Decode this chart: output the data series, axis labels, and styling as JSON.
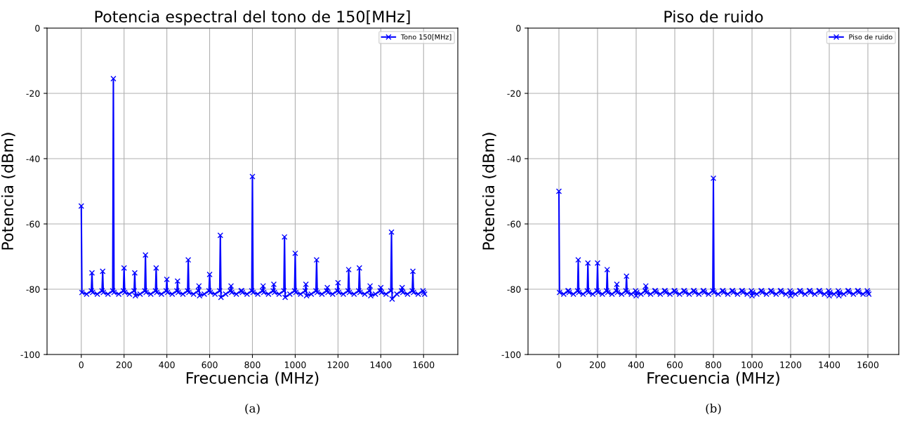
{
  "chart_data": [
    {
      "type": "line",
      "title": "Potencia espectral del tono de 150[MHz]",
      "xlabel": "Frecuencia (MHz)",
      "ylabel": "Potencia (dBm)",
      "x": [
        0,
        3,
        25,
        47,
        50,
        53,
        75,
        97,
        100,
        103,
        125,
        147,
        150,
        153,
        175,
        197,
        200,
        203,
        225,
        247,
        250,
        253,
        275,
        297,
        300,
        303,
        325,
        347,
        350,
        353,
        375,
        397,
        400,
        403,
        425,
        447,
        450,
        453,
        475,
        497,
        500,
        503,
        525,
        547,
        550,
        553,
        575,
        597,
        600,
        603,
        625,
        647,
        650,
        653,
        675,
        697,
        700,
        703,
        725,
        747,
        750,
        753,
        775,
        797,
        800,
        803,
        825,
        847,
        850,
        853,
        875,
        897,
        900,
        903,
        925,
        947,
        950,
        953,
        975,
        997,
        1000,
        1003,
        1025,
        1047,
        1050,
        1053,
        1075,
        1097,
        1100,
        1103,
        1125,
        1147,
        1150,
        1153,
        1175,
        1197,
        1200,
        1203,
        1225,
        1247,
        1250,
        1253,
        1275,
        1297,
        1300,
        1303,
        1325,
        1347,
        1350,
        1353,
        1375,
        1397,
        1400,
        1403,
        1425,
        1447,
        1450,
        1453,
        1475,
        1497,
        1500,
        1503,
        1525,
        1547,
        1550,
        1553,
        1575,
        1597,
        1600,
        1605
      ],
      "series": [
        {
          "name": "Tono 150[MHz]",
          "color": "#0000ff",
          "values": [
            -54.5,
            -81,
            -81.5,
            -80.5,
            -75,
            -81,
            -81.5,
            -80.5,
            -74.5,
            -81,
            -81.5,
            -80.5,
            -15.5,
            -81,
            -81.5,
            -80.5,
            -73.5,
            -81,
            -81.5,
            -80.5,
            -75,
            -82,
            -81.5,
            -80.5,
            -69.5,
            -81,
            -81.5,
            -80.5,
            -73.5,
            -81,
            -81.5,
            -80.5,
            -77,
            -81,
            -81.5,
            -80.5,
            -77.5,
            -81,
            -81.5,
            -80.5,
            -71,
            -81,
            -81.5,
            -80.5,
            -79,
            -82,
            -81.5,
            -80.5,
            -75.5,
            -81,
            -81.5,
            -80.5,
            -63.5,
            -82.5,
            -81.5,
            -80.5,
            -79,
            -81,
            -81.5,
            -80.5,
            -80.5,
            -81,
            -81.5,
            -80.5,
            -45.5,
            -81,
            -81.5,
            -80.5,
            -79,
            -81,
            -81.5,
            -80.5,
            -78.5,
            -81,
            -81.5,
            -80.5,
            -64,
            -82.5,
            -81.5,
            -80.5,
            -69,
            -81,
            -81.5,
            -80.5,
            -78.5,
            -82,
            -81.5,
            -80.5,
            -71,
            -81,
            -81.5,
            -80.5,
            -79.5,
            -81,
            -81.5,
            -80.5,
            -78,
            -81,
            -81.5,
            -80.5,
            -74,
            -81,
            -81.5,
            -80.5,
            -73.5,
            -81,
            -81.5,
            -80.5,
            -79,
            -82,
            -81.5,
            -80.5,
            -79.5,
            -81,
            -81.5,
            -80.5,
            -62.5,
            -83,
            -81.5,
            -80.5,
            -79.5,
            -81,
            -81.5,
            -80.5,
            -74.5,
            -81,
            -81.5,
            -80.5,
            -81,
            -81.5
          ]
        }
      ],
      "xlim": [
        -160,
        1760
      ],
      "ylim": [
        -100,
        0
      ],
      "xticks": [
        0,
        200,
        400,
        600,
        800,
        1000,
        1200,
        1400,
        1600
      ],
      "yticks": [
        -100,
        -80,
        -60,
        -40,
        -20,
        0
      ],
      "grid": true,
      "legend": "top right",
      "marker": "cross",
      "line_style": "solid",
      "annotations": [
        "(a)"
      ]
    },
    {
      "type": "line",
      "title": "Piso de ruido",
      "xlabel": "Frecuencia (MHz)",
      "ylabel": "Potencia (dBm)",
      "x": [
        0,
        3,
        25,
        47,
        50,
        53,
        75,
        97,
        100,
        103,
        125,
        147,
        150,
        153,
        175,
        197,
        200,
        203,
        225,
        247,
        250,
        253,
        275,
        297,
        300,
        303,
        325,
        347,
        350,
        353,
        375,
        397,
        400,
        403,
        425,
        447,
        450,
        453,
        475,
        497,
        500,
        503,
        525,
        547,
        550,
        553,
        575,
        597,
        600,
        603,
        625,
        647,
        650,
        653,
        675,
        697,
        700,
        703,
        725,
        747,
        750,
        753,
        775,
        797,
        800,
        803,
        825,
        847,
        850,
        853,
        875,
        897,
        900,
        903,
        925,
        947,
        950,
        953,
        975,
        997,
        1000,
        1003,
        1025,
        1047,
        1050,
        1053,
        1075,
        1097,
        1100,
        1103,
        1125,
        1147,
        1150,
        1153,
        1175,
        1197,
        1200,
        1203,
        1225,
        1247,
        1250,
        1253,
        1275,
        1297,
        1300,
        1303,
        1325,
        1347,
        1350,
        1353,
        1375,
        1397,
        1400,
        1403,
        1425,
        1447,
        1450,
        1453,
        1475,
        1497,
        1500,
        1503,
        1525,
        1547,
        1550,
        1553,
        1575,
        1597,
        1600,
        1605
      ],
      "series": [
        {
          "name": "Piso de ruido",
          "color": "#0000ff",
          "values": [
            -50,
            -81,
            -81.5,
            -80.5,
            -80.5,
            -81,
            -81.5,
            -80.5,
            -71,
            -81,
            -81.5,
            -80.5,
            -72,
            -81,
            -81.5,
            -80.5,
            -72,
            -81,
            -81.5,
            -80.5,
            -74,
            -81,
            -81.5,
            -80.5,
            -78.5,
            -81,
            -81.5,
            -80.5,
            -76,
            -81,
            -81.5,
            -80.5,
            -82,
            -81,
            -81.5,
            -80.5,
            -79,
            -81,
            -81.5,
            -80.5,
            -80.5,
            -81,
            -81.5,
            -80.5,
            -80.5,
            -81,
            -81.5,
            -80.5,
            -80.5,
            -81,
            -81.5,
            -80.5,
            -80.5,
            -81,
            -81.5,
            -80.5,
            -80.5,
            -81,
            -81.5,
            -80.5,
            -80.5,
            -81,
            -81.5,
            -80.5,
            -46,
            -81,
            -81.5,
            -80.5,
            -80.5,
            -81,
            -81.5,
            -80.5,
            -80.5,
            -81,
            -81.5,
            -80.5,
            -80.5,
            -81,
            -81.5,
            -80.5,
            -82,
            -81,
            -81.5,
            -80.5,
            -80.5,
            -81,
            -81.5,
            -80.5,
            -80.5,
            -81,
            -81.5,
            -80.5,
            -80.5,
            -81,
            -81.5,
            -80.5,
            -82,
            -81,
            -81.5,
            -80.5,
            -80.5,
            -81,
            -81.5,
            -80.5,
            -80.5,
            -81,
            -81.5,
            -80.5,
            -80.5,
            -81,
            -81.5,
            -80.5,
            -82,
            -81,
            -81.5,
            -80.5,
            -82,
            -81,
            -81.5,
            -80.5,
            -80.5,
            -81,
            -81.5,
            -80.5,
            -80.5,
            -81,
            -81.5,
            -80.5,
            -81,
            -81.5
          ]
        }
      ],
      "xlim": [
        -160,
        1760
      ],
      "ylim": [
        -100,
        0
      ],
      "xticks": [
        0,
        200,
        400,
        600,
        800,
        1000,
        1200,
        1400,
        1600
      ],
      "yticks": [
        -100,
        -80,
        -60,
        -40,
        -20,
        0
      ],
      "grid": true,
      "legend": "top right",
      "marker": "cross",
      "line_style": "solid",
      "annotations": [
        "(b)"
      ]
    }
  ]
}
